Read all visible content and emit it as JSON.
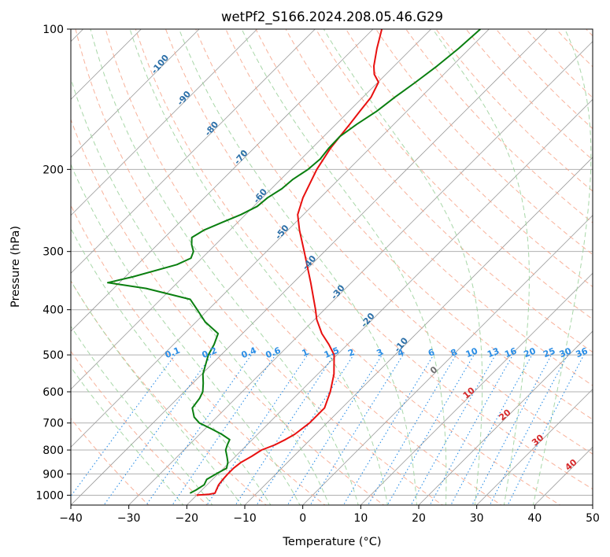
{
  "chart_data": {
    "type": "line",
    "title": "wetPf2_S166.2024.208.05.46.G29",
    "xlabel": "Temperature (°C)",
    "ylabel": "Pressure (hPa)",
    "xlim": [
      -40,
      50
    ],
    "ylim": [
      1050,
      100
    ],
    "y_scale": "log",
    "skew_T": true,
    "x_ticks": [
      "-40",
      "-30",
      "-20",
      "-10",
      "0",
      "10",
      "20",
      "30",
      "40",
      "50"
    ],
    "y_ticks": [
      "100",
      "200",
      "300",
      "400",
      "500",
      "600",
      "700",
      "800",
      "900",
      "1000"
    ],
    "grid": true,
    "colors": {
      "temperature": "#e8100f",
      "dewpoint": "#0a7f10",
      "isotherm": "#9a9a9a",
      "dry_adiabat": "#f7a589",
      "moist_adiabat": "#9fd39f",
      "mixing_ratio": "#2b8ee6",
      "adiabat_label": "#2b6fa8",
      "warm_label": "#d62728"
    },
    "series": [
      {
        "key": "temperature",
        "points": [
          {
            "p": 1000,
            "t": -20.0
          },
          {
            "p": 995,
            "t": -18.0
          },
          {
            "p": 990,
            "t": -17.2
          },
          {
            "p": 975,
            "t": -17.5
          },
          {
            "p": 950,
            "t": -18.0
          },
          {
            "p": 925,
            "t": -18.2
          },
          {
            "p": 900,
            "t": -18.3
          },
          {
            "p": 875,
            "t": -18.3
          },
          {
            "p": 850,
            "t": -18.0
          },
          {
            "p": 825,
            "t": -17.2
          },
          {
            "p": 800,
            "t": -16.6
          },
          {
            "p": 780,
            "t": -15.2
          },
          {
            "p": 760,
            "t": -14.3
          },
          {
            "p": 740,
            "t": -13.6
          },
          {
            "p": 700,
            "t": -13.0
          },
          {
            "p": 650,
            "t": -13.0
          },
          {
            "p": 600,
            "t": -14.8
          },
          {
            "p": 550,
            "t": -17.2
          },
          {
            "p": 500,
            "t": -20.5
          },
          {
            "p": 475,
            "t": -23.2
          },
          {
            "p": 450,
            "t": -26.3
          },
          {
            "p": 420,
            "t": -29.6
          },
          {
            "p": 400,
            "t": -31.5
          },
          {
            "p": 350,
            "t": -37.0
          },
          {
            "p": 300,
            "t": -43.5
          },
          {
            "p": 270,
            "t": -48.0
          },
          {
            "p": 250,
            "t": -51.0
          },
          {
            "p": 230,
            "t": -53.0
          },
          {
            "p": 200,
            "t": -55.5
          },
          {
            "p": 180,
            "t": -56.8
          },
          {
            "p": 170,
            "t": -57.2
          },
          {
            "p": 160,
            "t": -57.6
          },
          {
            "p": 150,
            "t": -58.1
          },
          {
            "p": 140,
            "t": -58.6
          },
          {
            "p": 130,
            "t": -59.9
          },
          {
            "p": 125,
            "t": -62.0
          },
          {
            "p": 120,
            "t": -63.5
          },
          {
            "p": 110,
            "t": -66.0
          },
          {
            "p": 100,
            "t": -68.5
          }
        ]
      },
      {
        "key": "dewpoint",
        "points": [
          {
            "p": 990,
            "t": -21.5
          },
          {
            "p": 975,
            "t": -21.0
          },
          {
            "p": 950,
            "t": -20.5
          },
          {
            "p": 925,
            "t": -21.0
          },
          {
            "p": 900,
            "t": -20.3
          },
          {
            "p": 875,
            "t": -19.5
          },
          {
            "p": 850,
            "t": -20.3
          },
          {
            "p": 825,
            "t": -21.5
          },
          {
            "p": 800,
            "t": -22.8
          },
          {
            "p": 780,
            "t": -23.4
          },
          {
            "p": 760,
            "t": -23.9
          },
          {
            "p": 740,
            "t": -26.2
          },
          {
            "p": 720,
            "t": -29.0
          },
          {
            "p": 700,
            "t": -32.0
          },
          {
            "p": 680,
            "t": -33.9
          },
          {
            "p": 650,
            "t": -35.8
          },
          {
            "p": 620,
            "t": -36.2
          },
          {
            "p": 600,
            "t": -36.8
          },
          {
            "p": 575,
            "t": -38.2
          },
          {
            "p": 550,
            "t": -39.8
          },
          {
            "p": 500,
            "t": -42.2
          },
          {
            "p": 475,
            "t": -43.0
          },
          {
            "p": 450,
            "t": -44.2
          },
          {
            "p": 425,
            "t": -48.4
          },
          {
            "p": 400,
            "t": -51.9
          },
          {
            "p": 380,
            "t": -54.9
          },
          {
            "p": 360,
            "t": -64.4
          },
          {
            "p": 350,
            "t": -72.0
          },
          {
            "p": 340,
            "t": -68.7
          },
          {
            "p": 320,
            "t": -63.2
          },
          {
            "p": 310,
            "t": -61.9
          },
          {
            "p": 300,
            "t": -62.6
          },
          {
            "p": 290,
            "t": -64.1
          },
          {
            "p": 280,
            "t": -65.3
          },
          {
            "p": 270,
            "t": -64.5
          },
          {
            "p": 260,
            "t": -62.7
          },
          {
            "p": 250,
            "t": -60.8
          },
          {
            "p": 240,
            "t": -59.4
          },
          {
            "p": 230,
            "t": -59.1
          },
          {
            "p": 220,
            "t": -58.2
          },
          {
            "p": 210,
            "t": -57.9
          },
          {
            "p": 200,
            "t": -57.0
          },
          {
            "p": 190,
            "t": -56.7
          },
          {
            "p": 180,
            "t": -57.1
          },
          {
            "p": 170,
            "t": -57.2
          },
          {
            "p": 160,
            "t": -56.4
          },
          {
            "p": 150,
            "t": -55.2
          },
          {
            "p": 140,
            "t": -54.5
          },
          {
            "p": 130,
            "t": -53.5
          },
          {
            "p": 120,
            "t": -52.6
          },
          {
            "p": 110,
            "t": -51.9
          },
          {
            "p": 100,
            "t": -51.5
          }
        ]
      }
    ],
    "dry_adiabat_labels": [
      "-100",
      "-90",
      "-80",
      "-70",
      "-60",
      "-50",
      "-40",
      "-30",
      "-20",
      "-10"
    ],
    "warm_adiabat_labels": [
      "0",
      "10",
      "20",
      "30",
      "40"
    ],
    "mixing_ratio_labels": [
      "0.1",
      "0.2",
      "0.4",
      "0.6",
      "1",
      "1.5",
      "2",
      "3",
      "4",
      "6",
      "8",
      "10",
      "13",
      "16",
      "20",
      "25",
      "30",
      "36"
    ]
  }
}
